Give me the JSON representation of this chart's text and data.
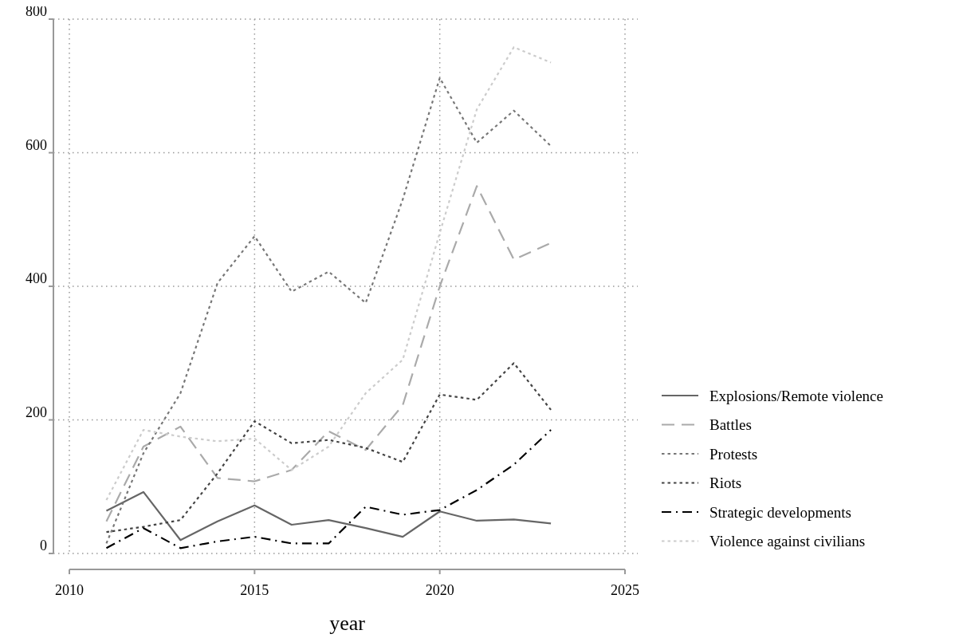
{
  "chart_data": {
    "type": "line",
    "xlabel": "year",
    "x": [
      2011,
      2012,
      2013,
      2014,
      2015,
      2016,
      2017,
      2018,
      2019,
      2020,
      2021,
      2022,
      2023
    ],
    "xlim": [
      2010,
      2025
    ],
    "xticks": [
      2010,
      2015,
      2020,
      2025
    ],
    "ylim": [
      0,
      800
    ],
    "yticks": [
      0,
      200,
      400,
      600,
      800
    ],
    "grid": true,
    "legend": "right",
    "marker": "none",
    "series": [
      {
        "name": "Explosions/Remote violence",
        "color": "#666666",
        "line_style": "solid",
        "values": [
          64,
          92,
          20,
          48,
          72,
          43,
          50,
          38,
          25,
          63,
          49,
          51,
          45
        ]
      },
      {
        "name": "Battles",
        "color": "#aaaaaa",
        "line_style": "dashed",
        "values": [
          48,
          160,
          190,
          113,
          108,
          125,
          183,
          155,
          222,
          400,
          550,
          440,
          465
        ]
      },
      {
        "name": "Protests",
        "color": "#777777",
        "line_style": "dotted",
        "values": [
          15,
          150,
          240,
          405,
          475,
          392,
          422,
          375,
          530,
          712,
          615,
          663,
          610
        ]
      },
      {
        "name": "Riots",
        "color": "#444444",
        "line_style": "dotted",
        "values": [
          32,
          40,
          50,
          120,
          198,
          165,
          170,
          158,
          137,
          238,
          230,
          285,
          215
        ]
      },
      {
        "name": "Strategic developments",
        "color": "#000000",
        "line_style": "dashdot",
        "values": [
          8,
          38,
          8,
          18,
          25,
          15,
          15,
          70,
          58,
          65,
          95,
          133,
          185
        ]
      },
      {
        "name": "Violence against civilians",
        "color": "#cccccc",
        "line_style": "dotted",
        "values": [
          80,
          185,
          175,
          168,
          172,
          125,
          160,
          240,
          290,
          480,
          665,
          758,
          735
        ]
      }
    ]
  }
}
